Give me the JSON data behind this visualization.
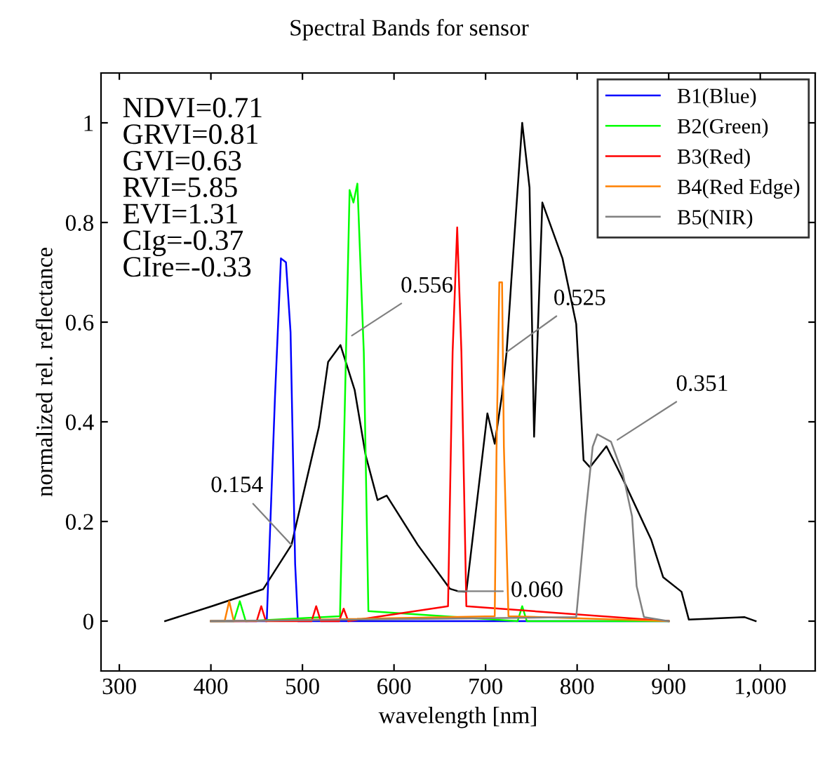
{
  "chart_data": {
    "type": "line",
    "title": "Spectral Bands for sensor",
    "xlabel": "wavelength [nm]",
    "ylabel": "normalized rel. reflectance",
    "xlim": [
      280,
      1060
    ],
    "ylim": [
      -0.1,
      1.1
    ],
    "xticks": [
      300,
      400,
      500,
      600,
      700,
      800,
      900,
      {
        "value": 1000,
        "label": "1,000"
      }
    ],
    "yticks": [
      0,
      0.2,
      0.4,
      0.6,
      0.8,
      1
    ],
    "grid": false,
    "legend": "top right",
    "marker": "none",
    "line_style": "solid",
    "series": [
      {
        "color": "#000000",
        "x": [
          350,
          401,
          457,
          488,
          518,
          528,
          541.5,
          557,
          569,
          582,
          592,
          626,
          661,
          670,
          679,
          702,
          710,
          718,
          723,
          728,
          740,
          748,
          753,
          762,
          784,
          799,
          807,
          814,
          832,
          850,
          881,
          894,
          914,
          922,
          983,
          995
        ],
        "values": [
          0,
          0.03,
          0.064,
          0.153,
          0.39,
          0.52,
          0.554,
          0.464,
          0.333,
          0.243,
          0.252,
          0.153,
          0.065,
          0.06,
          0.059,
          0.417,
          0.356,
          0.455,
          0.54,
          0.68,
          1.0,
          0.87,
          0.37,
          0.84,
          0.728,
          0.596,
          0.323,
          0.309,
          0.351,
          0.285,
          0.163,
          0.088,
          0.059,
          0.003,
          0.008,
          0
        ]
      },
      {
        "name": "B1(Blue)",
        "color": "#0000ff",
        "x": [
          400,
          461,
          470,
          476.5,
          482,
          487,
          492,
          495,
          900
        ],
        "values": [
          0,
          0,
          0.45,
          0.728,
          0.72,
          0.58,
          0.115,
          0,
          0
        ]
      },
      {
        "name": "B2(Green)",
        "color": "#00ff00",
        "x": [
          400,
          425,
          431.6,
          438,
          541,
          546.5,
          551.5,
          555.7,
          560,
          567,
          572,
          735,
          740,
          745,
          900
        ],
        "values": [
          0,
          0,
          0.04,
          0,
          0.01,
          0.45,
          0.865,
          0.84,
          0.878,
          0.54,
          0.02,
          0,
          0.03,
          0,
          0
        ]
      },
      {
        "name": "B3(Red)",
        "color": "#ff0000",
        "x": [
          400,
          450,
          455,
          460,
          510,
          515,
          520,
          540,
          545,
          550,
          659,
          664,
          669,
          673.6,
          679,
          900
        ],
        "values": [
          0,
          0,
          0.03,
          0,
          0,
          0.03,
          0,
          0,
          0.025,
          0,
          0.03,
          0.54,
          0.79,
          0.54,
          0.03,
          0
        ]
      },
      {
        "name": "B4(Red Edge)",
        "color": "#ff8000",
        "x": [
          400,
          415,
          420,
          425,
          710,
          712,
          715,
          718,
          720,
          725,
          900
        ],
        "values": [
          0,
          0,
          0.04,
          0,
          0.01,
          0.35,
          0.68,
          0.68,
          0.35,
          0.01,
          0
        ]
      },
      {
        "name": "B5(NIR)",
        "color": "#808080",
        "x": [
          400,
          799,
          809,
          817,
          822,
          837,
          850,
          860,
          865,
          873,
          900
        ],
        "values": [
          0,
          0.008,
          0.21,
          0.35,
          0.375,
          0.36,
          0.295,
          0.21,
          0.07,
          0.008,
          0
        ]
      }
    ],
    "annotations": [
      "NDVI=0.71\nGRVI=0.81\nGVI=0.63\nRVI=5.85\nEVI=1.31\nCIg=-0.37\nCIre=-0.33",
      {
        "text": "0.154",
        "x": 488,
        "y": 0.153
      },
      {
        "text": "0.556",
        "x": 554,
        "y": 0.573
      },
      {
        "text": "0.525",
        "x": 723,
        "y": 0.54
      },
      {
        "text": "0.351",
        "x": 844,
        "y": 0.364
      },
      {
        "text": "0.060",
        "x": 670,
        "y": 0.06
      }
    ]
  }
}
